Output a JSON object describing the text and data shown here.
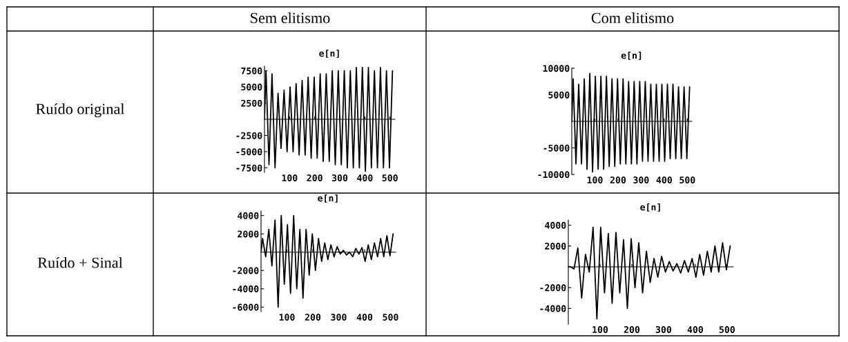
{
  "chart_data": [
    {
      "type": "line",
      "title": "e[n]",
      "annotations": [
        "Sem elitismo",
        "Ruído original"
      ],
      "xlim": [
        0,
        520
      ],
      "ylim": [
        -8200,
        8200
      ],
      "xticks": [
        100,
        200,
        300,
        400,
        500
      ],
      "yticks": [
        -7500,
        -5000,
        -2500,
        2500,
        5000,
        7500
      ],
      "color": "#000000",
      "x": [
        0,
        6,
        18,
        30,
        42,
        54,
        66,
        78,
        90,
        102,
        114,
        126,
        138,
        150,
        162,
        174,
        186,
        198,
        210,
        222,
        234,
        246,
        258,
        270,
        282,
        294,
        306,
        318,
        330,
        342,
        354,
        366,
        378,
        390,
        402,
        414,
        426,
        438,
        450,
        462,
        474,
        486,
        498,
        510
      ],
      "values": [
        0,
        7500,
        -7000,
        7000,
        -7500,
        4000,
        -4500,
        4500,
        -5000,
        5000,
        -5000,
        5500,
        -5500,
        6000,
        -5500,
        6500,
        -6000,
        6500,
        -6000,
        7000,
        -6500,
        7000,
        -6500,
        7500,
        -7000,
        7500,
        -7000,
        7500,
        -7500,
        7500,
        -7500,
        8000,
        -7500,
        8000,
        -8000,
        8000,
        -7500,
        7500,
        -7500,
        8000,
        -7500,
        7500,
        -7500,
        7500
      ]
    },
    {
      "type": "line",
      "title": "e[n]",
      "annotations": [
        "Com elitismo"
      ],
      "xlim": [
        0,
        520
      ],
      "ylim": [
        -10000,
        10000
      ],
      "xticks": [
        100,
        200,
        300,
        400,
        500
      ],
      "yticks": [
        -10000,
        -5000,
        5000,
        10000
      ],
      "color": "#000000",
      "x": [
        0,
        6,
        18,
        30,
        42,
        54,
        66,
        78,
        90,
        102,
        114,
        126,
        138,
        150,
        162,
        174,
        186,
        198,
        210,
        222,
        234,
        246,
        258,
        270,
        282,
        294,
        306,
        318,
        330,
        342,
        354,
        366,
        378,
        390,
        402,
        414,
        426,
        438,
        450,
        462,
        474,
        486,
        498,
        510
      ],
      "values": [
        0,
        8000,
        -8000,
        7000,
        -8000,
        8000,
        -9000,
        9000,
        -9500,
        8500,
        -9000,
        8500,
        -9000,
        8500,
        -8500,
        8000,
        -8500,
        8000,
        -8000,
        8000,
        -8000,
        7500,
        -8000,
        7500,
        -8000,
        7500,
        -7500,
        7500,
        -7500,
        7000,
        -7500,
        7000,
        -7500,
        7000,
        -7500,
        7000,
        -7000,
        7000,
        -7000,
        6500,
        -7000,
        6500,
        -7000,
        6500
      ]
    },
    {
      "type": "line",
      "title": "e[n]",
      "annotations": [
        "Ruído + Sinal"
      ],
      "xlim": [
        0,
        520
      ],
      "ylim": [
        -6500,
        4500
      ],
      "xticks": [
        100,
        200,
        300,
        400,
        500
      ],
      "yticks": [
        -6000,
        -4000,
        -2000,
        2000,
        4000
      ],
      "color": "#000000",
      "x": [
        0,
        6,
        18,
        30,
        42,
        54,
        66,
        78,
        90,
        102,
        114,
        126,
        138,
        150,
        162,
        174,
        186,
        198,
        210,
        222,
        234,
        246,
        258,
        270,
        282,
        294,
        306,
        318,
        330,
        342,
        354,
        366,
        378,
        390,
        402,
        414,
        426,
        438,
        450,
        462,
        474,
        486,
        498,
        510
      ],
      "values": [
        0,
        1500,
        -500,
        2500,
        -1500,
        3500,
        -6000,
        4000,
        -3500,
        3000,
        -4500,
        4000,
        -4000,
        2500,
        -5000,
        2500,
        -2500,
        2000,
        -2000,
        1500,
        -1000,
        1000,
        -800,
        800,
        -500,
        600,
        -200,
        200,
        -300,
        0,
        -500,
        400,
        -200,
        500,
        -1000,
        800,
        -800,
        1000,
        -500,
        1500,
        -500,
        1800,
        -400,
        2000
      ]
    },
    {
      "type": "line",
      "title": "e[n]",
      "xlim": [
        0,
        520
      ],
      "ylim": [
        -5500,
        4500
      ],
      "xticks": [
        100,
        200,
        300,
        400,
        500
      ],
      "yticks": [
        -4000,
        -2000,
        2000,
        4000
      ],
      "color": "#000000",
      "x": [
        0,
        6,
        18,
        30,
        42,
        54,
        66,
        78,
        90,
        102,
        114,
        126,
        138,
        150,
        162,
        174,
        186,
        198,
        210,
        222,
        234,
        246,
        258,
        270,
        282,
        294,
        306,
        318,
        330,
        342,
        354,
        366,
        378,
        390,
        402,
        414,
        426,
        438,
        450,
        462,
        474,
        486,
        498,
        510
      ],
      "values": [
        0,
        0,
        -200,
        1800,
        -3000,
        1200,
        -500,
        3800,
        -5000,
        3800,
        -2500,
        3200,
        -3500,
        3300,
        -2500,
        2600,
        -4000,
        2700,
        -2000,
        2300,
        -2500,
        1500,
        -1500,
        800,
        -1000,
        1000,
        -500,
        500,
        -400,
        300,
        -600,
        600,
        -500,
        800,
        -1000,
        1200,
        -800,
        1500,
        -500,
        2000,
        -500,
        2300,
        -300,
        2000
      ]
    }
  ]
}
